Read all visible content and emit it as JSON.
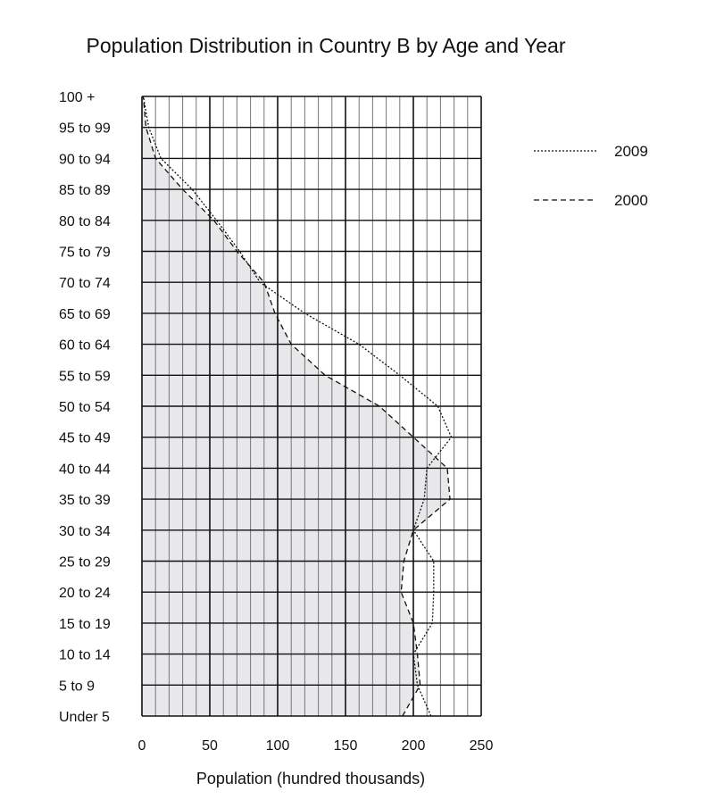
{
  "chart_data": {
    "type": "line",
    "title": "Population Distribution in Country B by Age and Year",
    "xlabel": "Population (hundred thousands)",
    "ylabel": "",
    "xlim": [
      0,
      250
    ],
    "x_ticks": [
      0,
      50,
      100,
      150,
      200,
      250
    ],
    "categories": [
      "Under 5",
      "5 to 9",
      "10 to 14",
      "15 to 19",
      "20 to 24",
      "25 to 29",
      "30 to 34",
      "35 to 39",
      "40 to 44",
      "45 to 49",
      "50 to 54",
      "55 to 59",
      "60 to 64",
      "65 to 69",
      "70 to 74",
      "75 to 79",
      "80 to 84",
      "85 to 89",
      "90 to 94",
      "95 to 99",
      "100 +"
    ],
    "grid": true,
    "legend_position": "top-right",
    "series": [
      {
        "name": "2009",
        "style": "dotted",
        "values": [
          213,
          203,
          200,
          214,
          215,
          215,
          200,
          208,
          210,
          228,
          218,
          190,
          160,
          120,
          87,
          72,
          55,
          37,
          14,
          5,
          1
        ]
      },
      {
        "name": "2000",
        "style": "dashed",
        "values": [
          192,
          205,
          203,
          200,
          191,
          193,
          200,
          227,
          225,
          200,
          175,
          135,
          110,
          98,
          90,
          70,
          53,
          30,
          10,
          3,
          1
        ]
      }
    ],
    "shaded_series": "2000",
    "shade_color": "#e8e8ea"
  }
}
